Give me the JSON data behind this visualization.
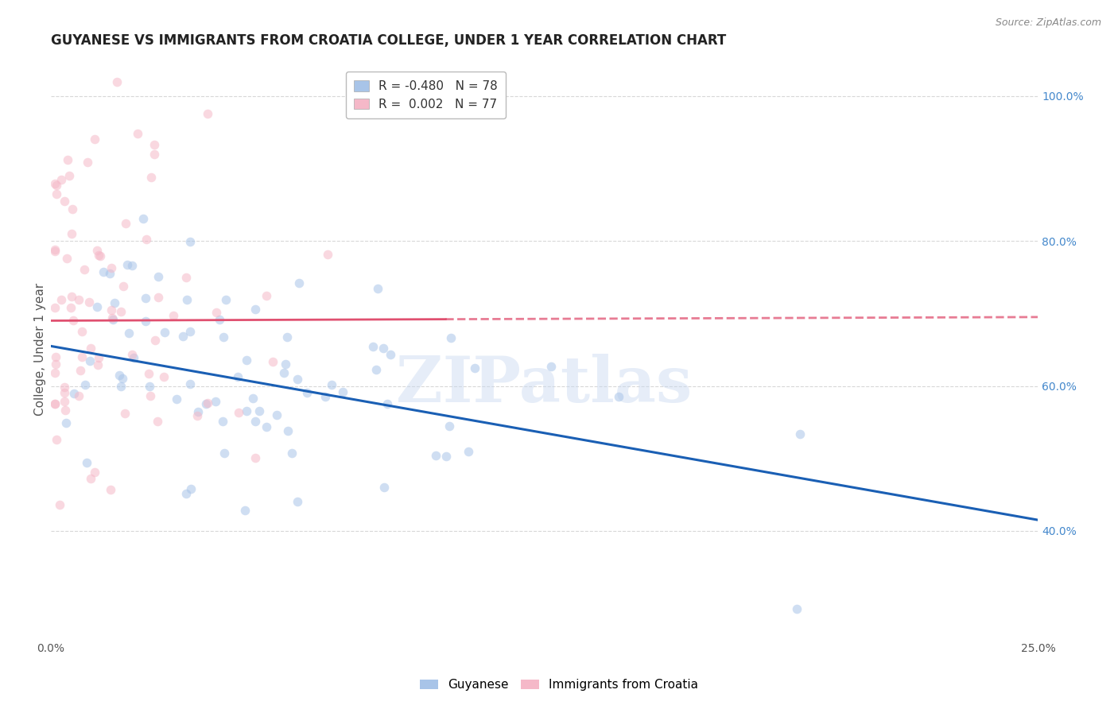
{
  "title": "GUYANESE VS IMMIGRANTS FROM CROATIA COLLEGE, UNDER 1 YEAR CORRELATION CHART",
  "source": "Source: ZipAtlas.com",
  "ylabel": "College, Under 1 year",
  "legend_labels": [
    "Guyanese",
    "Immigrants from Croatia"
  ],
  "R_blue": -0.48,
  "N_blue": 78,
  "R_pink": 0.002,
  "N_pink": 77,
  "blue_color": "#a8c4e8",
  "pink_color": "#f5b8c8",
  "blue_line_color": "#1a5fb4",
  "pink_line_color": "#e05070",
  "xmin": 0.0,
  "xmax": 0.25,
  "ymin": 0.25,
  "ymax": 1.05,
  "right_yticks": [
    0.4,
    0.6,
    0.8,
    1.0
  ],
  "right_yticklabels": [
    "40.0%",
    "60.0%",
    "80.0%",
    "100.0%"
  ],
  "xticks": [
    0.0,
    0.05,
    0.1,
    0.15,
    0.2,
    0.25
  ],
  "xticklabels": [
    "0.0%",
    "",
    "",
    "",
    "",
    "25.0%"
  ],
  "background_color": "#ffffff",
  "grid_color": "#d8d8d8",
  "blue_line_x0": 0.0,
  "blue_line_y0": 0.655,
  "blue_line_x1": 0.25,
  "blue_line_y1": 0.415,
  "pink_line_x0": 0.0,
  "pink_line_y0": 0.69,
  "pink_line_x1": 0.25,
  "pink_line_y1": 0.695,
  "pink_line_solid_end": 0.1,
  "watermark": "ZIPatlas",
  "title_fontsize": 12,
  "axis_fontsize": 11,
  "tick_fontsize": 10,
  "legend_fontsize": 11,
  "scatter_size": 70,
  "scatter_alpha": 0.55,
  "seed_blue": 42,
  "seed_pink": 99
}
